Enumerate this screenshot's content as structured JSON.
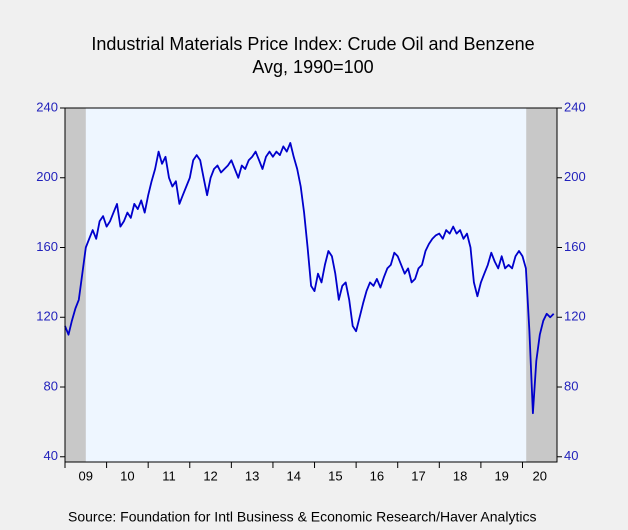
{
  "chart_data": {
    "type": "line",
    "title": "Industrial Materials Price Index: Crude Oil and Benzene",
    "subtitle": "Avg, 1990=100",
    "source": "Source:  Foundation for Intl Business & Economic Research/Haver Analytics",
    "xlim": [
      2009,
      2020.83
    ],
    "ylim": [
      37,
      240
    ],
    "yticks": [
      40,
      80,
      120,
      160,
      200,
      240
    ],
    "xticks": [
      {
        "value": 2009,
        "label": "09"
      },
      {
        "value": 2010,
        "label": "10"
      },
      {
        "value": 2011,
        "label": "11"
      },
      {
        "value": 2012,
        "label": "12"
      },
      {
        "value": 2013,
        "label": "13"
      },
      {
        "value": 2014,
        "label": "14"
      },
      {
        "value": 2015,
        "label": "15"
      },
      {
        "value": 2016,
        "label": "16"
      },
      {
        "value": 2017,
        "label": "17"
      },
      {
        "value": 2018,
        "label": "18"
      },
      {
        "value": 2019,
        "label": "19"
      },
      {
        "value": 2020,
        "label": "20"
      }
    ],
    "recessions": [
      [
        2009,
        2009.5
      ],
      [
        2020.09,
        2020.83
      ]
    ],
    "recession_color": "#c8c8c8",
    "x": [
      2009,
      2009.083,
      2009.167,
      2009.25,
      2009.333,
      2009.417,
      2009.5,
      2009.583,
      2009.667,
      2009.75,
      2009.833,
      2009.917,
      2010,
      2010.083,
      2010.167,
      2010.25,
      2010.333,
      2010.417,
      2010.5,
      2010.583,
      2010.667,
      2010.75,
      2010.833,
      2010.917,
      2011,
      2011.083,
      2011.167,
      2011.25,
      2011.333,
      2011.417,
      2011.5,
      2011.583,
      2011.667,
      2011.75,
      2011.833,
      2011.917,
      2012,
      2012.083,
      2012.167,
      2012.25,
      2012.333,
      2012.417,
      2012.5,
      2012.583,
      2012.667,
      2012.75,
      2012.833,
      2012.917,
      2013,
      2013.083,
      2013.167,
      2013.25,
      2013.333,
      2013.417,
      2013.5,
      2013.583,
      2013.667,
      2013.75,
      2013.833,
      2013.917,
      2014,
      2014.083,
      2014.167,
      2014.25,
      2014.333,
      2014.417,
      2014.5,
      2014.583,
      2014.667,
      2014.75,
      2014.833,
      2014.917,
      2015,
      2015.083,
      2015.167,
      2015.25,
      2015.333,
      2015.417,
      2015.5,
      2015.583,
      2015.667,
      2015.75,
      2015.833,
      2015.917,
      2016,
      2016.083,
      2016.167,
      2016.25,
      2016.333,
      2016.417,
      2016.5,
      2016.583,
      2016.667,
      2016.75,
      2016.833,
      2016.917,
      2017,
      2017.083,
      2017.167,
      2017.25,
      2017.333,
      2017.417,
      2017.5,
      2017.583,
      2017.667,
      2017.75,
      2017.833,
      2017.917,
      2018,
      2018.083,
      2018.167,
      2018.25,
      2018.333,
      2018.417,
      2018.5,
      2018.583,
      2018.667,
      2018.75,
      2018.833,
      2018.917,
      2019,
      2019.083,
      2019.167,
      2019.25,
      2019.333,
      2019.417,
      2019.5,
      2019.583,
      2019.667,
      2019.75,
      2019.833,
      2019.917,
      2020,
      2020.083,
      2020.167,
      2020.25,
      2020.333,
      2020.417,
      2020.5,
      2020.583,
      2020.667,
      2020.75
    ],
    "series": [
      {
        "color": "#0000cc",
        "values": [
          115,
          110,
          118,
          125,
          130,
          145,
          160,
          165,
          170,
          165,
          175,
          178,
          172,
          175,
          180,
          185,
          172,
          175,
          180,
          177,
          185,
          182,
          187,
          180,
          190,
          198,
          205,
          215,
          208,
          212,
          200,
          195,
          198,
          185,
          190,
          195,
          200,
          210,
          213,
          210,
          200,
          190,
          200,
          205,
          207,
          203,
          205,
          207,
          210,
          205,
          200,
          207,
          205,
          210,
          212,
          215,
          210,
          205,
          212,
          215,
          212,
          215,
          213,
          218,
          215,
          220,
          212,
          205,
          195,
          180,
          160,
          138,
          135,
          145,
          140,
          150,
          158,
          155,
          145,
          130,
          138,
          140,
          130,
          115,
          112,
          120,
          128,
          135,
          140,
          138,
          142,
          137,
          143,
          148,
          150,
          157,
          155,
          150,
          145,
          148,
          140,
          142,
          148,
          150,
          158,
          162,
          165,
          167,
          168,
          165,
          170,
          168,
          172,
          168,
          170,
          165,
          168,
          160,
          140,
          132,
          140,
          145,
          150,
          157,
          152,
          148,
          155,
          148,
          150,
          148,
          155,
          158,
          155,
          148,
          112,
          65,
          95,
          110,
          118,
          122,
          120,
          122
        ]
      }
    ]
  }
}
